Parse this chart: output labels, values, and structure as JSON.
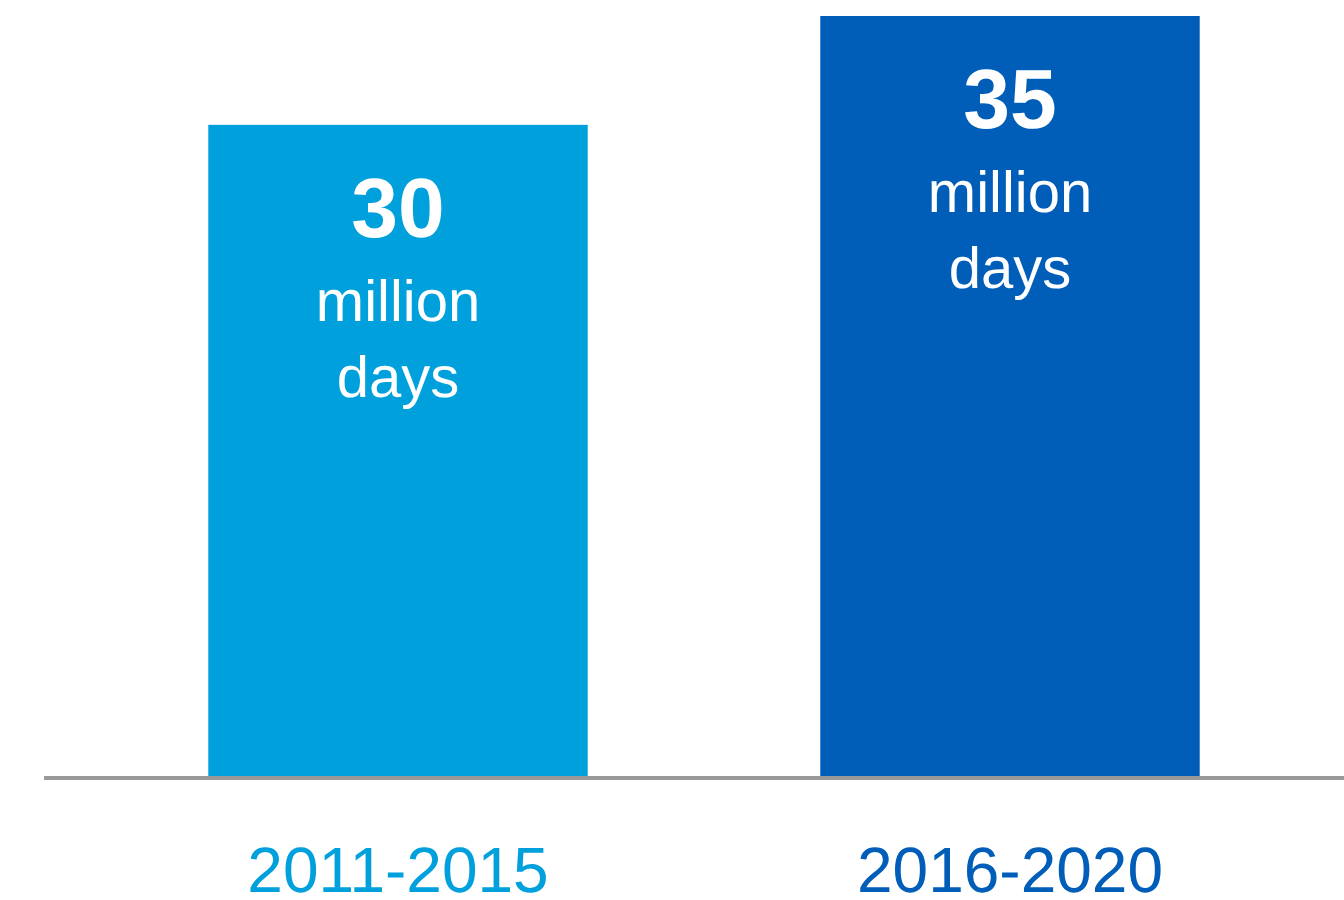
{
  "chart_data": {
    "type": "bar",
    "categories": [
      "2011-2015",
      "2016-2020"
    ],
    "values": [
      30,
      35
    ],
    "colors": [
      "#00a0dc",
      "#005eb8"
    ],
    "value_labels": [
      "30 million days",
      "35 million days"
    ],
    "ylim": [
      0,
      35
    ],
    "tick_labels": "x"
  }
}
